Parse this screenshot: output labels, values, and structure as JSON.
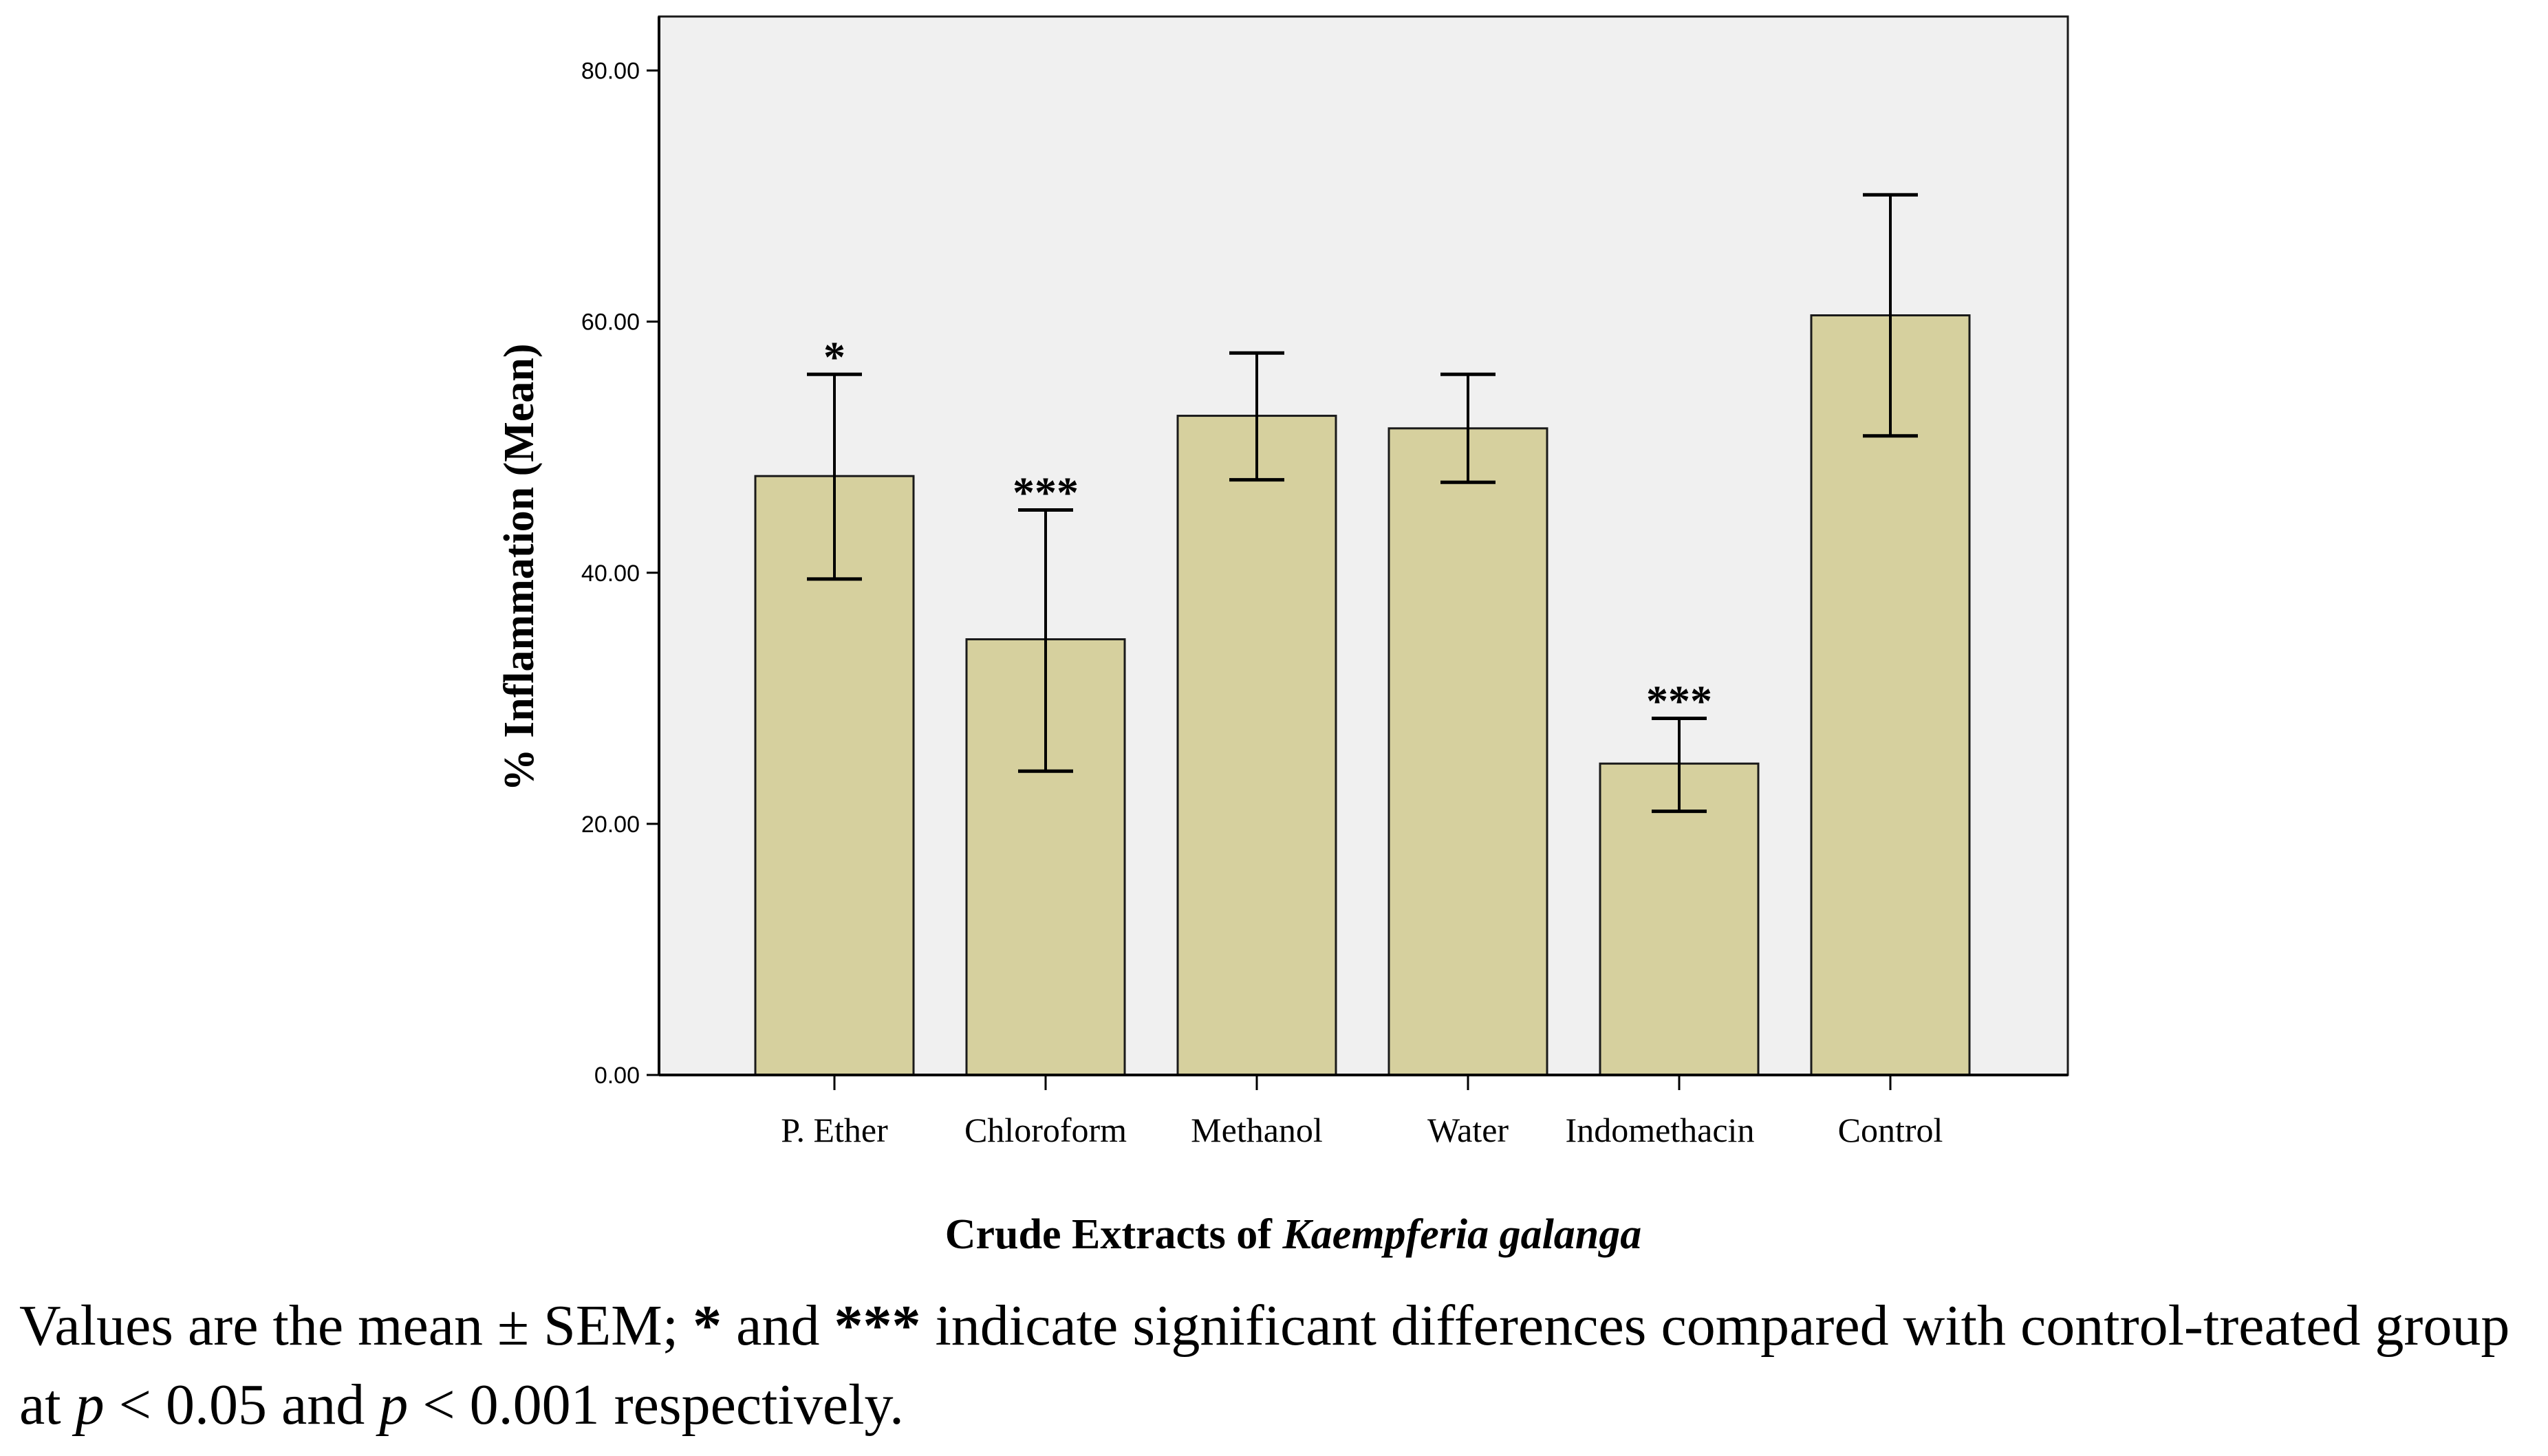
{
  "chart_data": {
    "type": "bar",
    "categories": [
      "P. Ether",
      "Chloroform",
      "Methanol",
      "Water",
      "Indomethacin",
      "Control"
    ],
    "values": [
      47.7,
      34.7,
      52.5,
      51.5,
      24.8,
      60.5
    ],
    "error_low": [
      39.5,
      24.2,
      47.4,
      47.2,
      21.0,
      50.9
    ],
    "error_high": [
      55.8,
      45.0,
      57.5,
      55.8,
      28.4,
      70.1
    ],
    "significance": [
      "*",
      "***",
      "",
      "",
      "***",
      ""
    ],
    "ylim": [
      0,
      84.3
    ],
    "yticks": [
      "0.00",
      "20.00",
      "40.00",
      "60.00",
      "80.00"
    ],
    "ylabel": "% Inflammation  (Mean)",
    "xlabel_prefix": "Crude Extracts of ",
    "xlabel_italic": "Kaempferia galanga",
    "colors": {
      "bar": "#d6d09e",
      "plot_bg": "#f0f0f0",
      "axis": "#000000"
    }
  },
  "caption": {
    "part1": "Values are the mean ± SEM; ",
    "star1": "*",
    "part2": " and ",
    "star3": "***",
    "part3": " indicate significant differences compared with control-treated group at ",
    "p1": "p",
    "part4": " < 0.05 and ",
    "p2": "p",
    "part5": " < 0.001 respectively."
  }
}
